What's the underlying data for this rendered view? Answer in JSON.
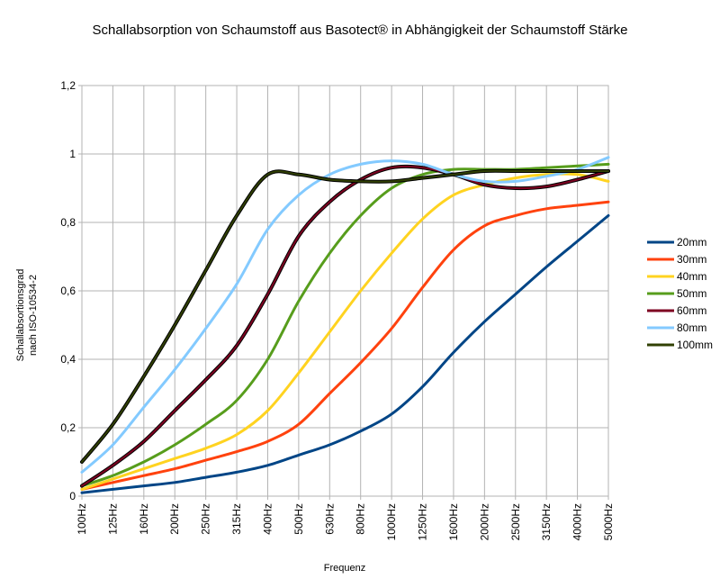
{
  "chart_data": {
    "type": "line",
    "title": "Schallabsorption von Schaumstoff aus Basotect® in Abhängigkeit der Schaumstoff Stärke",
    "xlabel": "Frequenz",
    "ylabel_lines": [
      "Schallabsortionsgrad",
      "nach ISO-10534-2"
    ],
    "categories": [
      "100Hz",
      "125Hz",
      "160Hz",
      "200Hz",
      "250Hz",
      "315Hz",
      "400Hz",
      "500Hz",
      "630Hz",
      "800Hz",
      "1000Hz",
      "1250Hz",
      "1600Hz",
      "2000Hz",
      "2500Hz",
      "3150Hz",
      "4000Hz",
      "5000Hz"
    ],
    "ylim": [
      0,
      1.2
    ],
    "yticks": [
      "0",
      "0,2",
      "0,4",
      "0,6",
      "0,8",
      "1",
      "1,2"
    ],
    "ytick_values": [
      0,
      0.2,
      0.4,
      0.6,
      0.8,
      1.0,
      1.2
    ],
    "grid": true,
    "legend_position": "right",
    "series": [
      {
        "name": "20mm",
        "color": "#004586",
        "values": [
          0.01,
          0.02,
          0.03,
          0.04,
          0.055,
          0.07,
          0.09,
          0.12,
          0.15,
          0.19,
          0.24,
          0.32,
          0.42,
          0.51,
          0.59,
          0.67,
          0.745,
          0.82
        ]
      },
      {
        "name": "30mm",
        "color": "#ff420e",
        "values": [
          0.02,
          0.04,
          0.06,
          0.08,
          0.105,
          0.13,
          0.16,
          0.21,
          0.3,
          0.39,
          0.49,
          0.61,
          0.72,
          0.79,
          0.82,
          0.84,
          0.85,
          0.86
        ]
      },
      {
        "name": "40mm",
        "color": "#ffd320",
        "values": [
          0.02,
          0.05,
          0.08,
          0.11,
          0.14,
          0.18,
          0.25,
          0.36,
          0.48,
          0.6,
          0.71,
          0.81,
          0.88,
          0.91,
          0.93,
          0.94,
          0.94,
          0.92
        ]
      },
      {
        "name": "50mm",
        "color": "#579d1c",
        "values": [
          0.03,
          0.06,
          0.1,
          0.15,
          0.21,
          0.28,
          0.4,
          0.57,
          0.71,
          0.82,
          0.9,
          0.94,
          0.955,
          0.955,
          0.955,
          0.96,
          0.965,
          0.97
        ]
      },
      {
        "name": "60mm",
        "color": "#7e0021",
        "values": [
          0.03,
          0.09,
          0.16,
          0.25,
          0.34,
          0.44,
          0.59,
          0.76,
          0.86,
          0.925,
          0.96,
          0.96,
          0.94,
          0.91,
          0.9,
          0.905,
          0.925,
          0.95
        ]
      },
      {
        "name": "80mm",
        "color": "#83caff",
        "values": [
          0.07,
          0.15,
          0.26,
          0.37,
          0.49,
          0.62,
          0.78,
          0.88,
          0.94,
          0.97,
          0.98,
          0.97,
          0.94,
          0.92,
          0.92,
          0.935,
          0.955,
          0.99
        ]
      },
      {
        "name": "100mm",
        "color": "#314004",
        "values": [
          0.1,
          0.21,
          0.35,
          0.5,
          0.66,
          0.82,
          0.94,
          0.94,
          0.925,
          0.92,
          0.92,
          0.93,
          0.94,
          0.95,
          0.95,
          0.95,
          0.95,
          0.95
        ]
      }
    ]
  }
}
